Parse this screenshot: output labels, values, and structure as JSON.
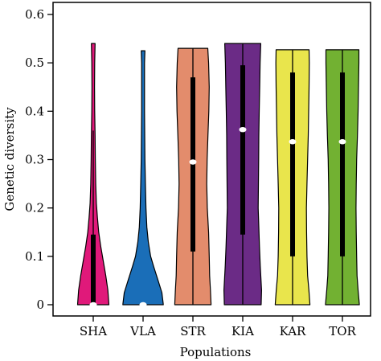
{
  "chart_data": {
    "type": "violin",
    "xlabel": "Populations",
    "ylabel": "Genetic diversity",
    "ylim": [
      0,
      0.6
    ],
    "yticks": [
      "0",
      "0.1",
      "0.2",
      "0.3",
      "0.4",
      "0.5",
      "0.6"
    ],
    "categories": [
      "SHA",
      "VLA",
      "STR",
      "KIA",
      "KAR",
      "TOR"
    ],
    "grid": false,
    "legend": "none",
    "series": [
      {
        "category": "SHA",
        "color": "#e0197a",
        "min": 0,
        "max": 0.54,
        "q1": 0,
        "median": 0,
        "q3": 0.145,
        "whisker_high": 0.36,
        "profile": [
          [
            0,
            0.75
          ],
          [
            0.03,
            0.7
          ],
          [
            0.06,
            0.6
          ],
          [
            0.09,
            0.48
          ],
          [
            0.12,
            0.36
          ],
          [
            0.15,
            0.26
          ],
          [
            0.18,
            0.2
          ],
          [
            0.21,
            0.15
          ],
          [
            0.25,
            0.12
          ],
          [
            0.3,
            0.1
          ],
          [
            0.35,
            0.09
          ],
          [
            0.4,
            0.07
          ],
          [
            0.45,
            0.06
          ],
          [
            0.5,
            0.07
          ],
          [
            0.54,
            0.09
          ]
        ]
      },
      {
        "category": "VLA",
        "color": "#1a6eb8",
        "min": 0,
        "max": 0.525,
        "q1": 0,
        "median": 0,
        "q3": 0,
        "whisker_high": 0,
        "profile": [
          [
            0,
            0.97
          ],
          [
            0.025,
            0.9
          ],
          [
            0.05,
            0.72
          ],
          [
            0.08,
            0.5
          ],
          [
            0.1,
            0.36
          ],
          [
            0.13,
            0.25
          ],
          [
            0.16,
            0.18
          ],
          [
            0.2,
            0.14
          ],
          [
            0.25,
            0.11
          ],
          [
            0.3,
            0.09
          ],
          [
            0.4,
            0.07
          ],
          [
            0.5,
            0.07
          ],
          [
            0.525,
            0.09
          ]
        ]
      },
      {
        "category": "STR",
        "color": "#e38c6c",
        "min": 0,
        "max": 0.53,
        "q1": 0.11,
        "median": 0.295,
        "q3": 0.47,
        "whisker_high": 0.53,
        "profile": [
          [
            0,
            0.87
          ],
          [
            0.03,
            0.84
          ],
          [
            0.06,
            0.8
          ],
          [
            0.1,
            0.78
          ],
          [
            0.15,
            0.75
          ],
          [
            0.2,
            0.69
          ],
          [
            0.25,
            0.66
          ],
          [
            0.3,
            0.68
          ],
          [
            0.35,
            0.72
          ],
          [
            0.4,
            0.76
          ],
          [
            0.45,
            0.78
          ],
          [
            0.5,
            0.75
          ],
          [
            0.53,
            0.71
          ]
        ]
      },
      {
        "category": "KIA",
        "color": "#6b2b86",
        "min": 0,
        "max": 0.54,
        "q1": 0.145,
        "median": 0.362,
        "q3": 0.495,
        "whisker_high": 0.54,
        "profile": [
          [
            0,
            0.88
          ],
          [
            0.03,
            0.9
          ],
          [
            0.08,
            0.84
          ],
          [
            0.12,
            0.8
          ],
          [
            0.16,
            0.77
          ],
          [
            0.2,
            0.74
          ],
          [
            0.25,
            0.75
          ],
          [
            0.3,
            0.76
          ],
          [
            0.35,
            0.77
          ],
          [
            0.4,
            0.79
          ],
          [
            0.45,
            0.81
          ],
          [
            0.5,
            0.83
          ],
          [
            0.54,
            0.86
          ]
        ]
      },
      {
        "category": "KAR",
        "color": "#e9e54c",
        "min": 0,
        "max": 0.527,
        "q1": 0.1,
        "median": 0.337,
        "q3": 0.48,
        "whisker_high": 0.527,
        "profile": [
          [
            0,
            0.83
          ],
          [
            0.03,
            0.78
          ],
          [
            0.06,
            0.72
          ],
          [
            0.1,
            0.69
          ],
          [
            0.15,
            0.67
          ],
          [
            0.2,
            0.66
          ],
          [
            0.25,
            0.69
          ],
          [
            0.3,
            0.72
          ],
          [
            0.35,
            0.75
          ],
          [
            0.4,
            0.77
          ],
          [
            0.45,
            0.79
          ],
          [
            0.5,
            0.8
          ],
          [
            0.527,
            0.79
          ]
        ]
      },
      {
        "category": "TOR",
        "color": "#72b132",
        "min": 0,
        "max": 0.527,
        "q1": 0.1,
        "median": 0.337,
        "q3": 0.48,
        "whisker_high": 0.527,
        "profile": [
          [
            0,
            0.81
          ],
          [
            0.03,
            0.75
          ],
          [
            0.06,
            0.7
          ],
          [
            0.1,
            0.68
          ],
          [
            0.15,
            0.66
          ],
          [
            0.2,
            0.65
          ],
          [
            0.25,
            0.66
          ],
          [
            0.3,
            0.68
          ],
          [
            0.35,
            0.72
          ],
          [
            0.4,
            0.75
          ],
          [
            0.45,
            0.77
          ],
          [
            0.5,
            0.79
          ],
          [
            0.527,
            0.79
          ]
        ]
      }
    ]
  }
}
